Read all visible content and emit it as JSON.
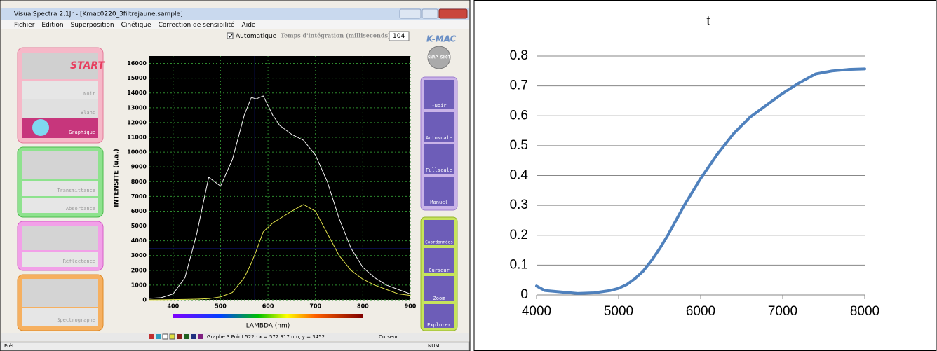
{
  "window": {
    "title": "VisualSpectra 2.1Jr - [Kmac0220_3filtrejaune.sample]",
    "menu": [
      "Fichier",
      "Edition",
      "Superposition",
      "Cinétique",
      "Correction de sensibilité",
      "Aide"
    ],
    "toolbar": {
      "checkbox": "Automatique",
      "integration_label": "Temps d'intégration (milliseconds)",
      "integration_value": "104",
      "logo": "K-MAC"
    },
    "left_panel": [
      "Noir",
      "Blanc",
      "Graphique",
      "Transmittance",
      "Absorbance",
      "Réflectance",
      "Spectrographe"
    ],
    "right_panel": [
      "SNAP SHOT",
      "-Noir",
      "Autoscale",
      "Fullscale",
      "Manuel",
      "Coordonnées",
      "Curseur",
      "Zoom",
      "Explorer"
    ],
    "status": {
      "graph_info": "Graphe 3 Point 522 : x = 572.317 nm, y = 3452",
      "mode": "Curseur",
      "ready": "Prêt",
      "num": "NUM"
    }
  },
  "chart_data": [
    {
      "type": "line",
      "x_label": "LAMBDA (nm)",
      "y_label": "INTENSITE (u.a.)",
      "x": [
        350,
        375,
        400,
        425,
        450,
        475,
        500,
        525,
        550,
        565,
        575,
        590,
        610,
        625,
        650,
        675,
        700,
        725,
        750,
        775,
        800,
        825,
        850,
        875,
        900
      ],
      "series": [
        {
          "color": "#f4f4f4",
          "values": [
            100,
            150,
            400,
            1500,
            4500,
            8300,
            7700,
            9500,
            12500,
            13700,
            13600,
            13800,
            12500,
            11800,
            11200,
            10800,
            9800,
            8000,
            5500,
            3500,
            2200,
            1500,
            1000,
            700,
            400
          ]
        },
        {
          "color": "#e2e24a",
          "values": [
            0,
            5,
            20,
            30,
            50,
            80,
            200,
            500,
            1500,
            2500,
            3300,
            4600,
            5200,
            5500,
            6000,
            6450,
            6000,
            4500,
            3000,
            2000,
            1400,
            1000,
            700,
            400,
            300
          ]
        }
      ],
      "xlim": [
        350,
        900
      ],
      "xticks": [
        400,
        500,
        600,
        700,
        800,
        900
      ],
      "ylim": [
        0,
        16500
      ],
      "yticks": [
        0,
        1000,
        2000,
        3000,
        4000,
        5000,
        6000,
        7000,
        8000,
        9000,
        10000,
        11000,
        12000,
        13000,
        14000,
        15000,
        16000
      ],
      "grid": true,
      "cursor": {
        "x": 572.317,
        "y": 3452
      }
    },
    {
      "type": "line",
      "title": "t",
      "x": [
        4000,
        4100,
        4300,
        4500,
        4700,
        4900,
        5000,
        5100,
        5200,
        5300,
        5400,
        5500,
        5600,
        5700,
        5800,
        5900,
        6000,
        6200,
        6400,
        6600,
        6800,
        7000,
        7200,
        7400,
        7500,
        7600,
        7800,
        8000
      ],
      "series": [
        {
          "color": "#4f81bd",
          "values": [
            0.03,
            0.015,
            0.01,
            0.005,
            0.007,
            0.015,
            0.022,
            0.035,
            0.055,
            0.08,
            0.115,
            0.155,
            0.2,
            0.25,
            0.3,
            0.345,
            0.39,
            0.47,
            0.54,
            0.595,
            0.635,
            0.675,
            0.71,
            0.74,
            0.745,
            0.75,
            0.755,
            0.757
          ]
        }
      ],
      "xlim": [
        4000,
        8000
      ],
      "xticks": [
        4000,
        5000,
        6000,
        7000,
        8000
      ],
      "ylim": [
        0,
        0.8
      ],
      "yticks": [
        0,
        0.1,
        0.2,
        0.3,
        0.4,
        0.5,
        0.6,
        0.7,
        0.8
      ],
      "grid": true
    }
  ]
}
